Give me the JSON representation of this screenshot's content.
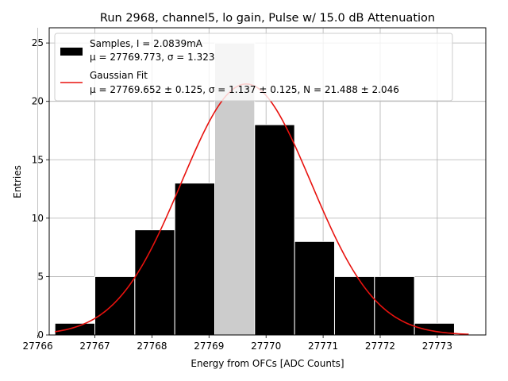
{
  "chart_data": {
    "type": "bar",
    "title": "Run 2968, channel5, lo gain, Pulse w/ 15.0 dB Attenuation",
    "xlabel": "Energy from OFCs [ADC Counts]",
    "ylabel": "Entries",
    "xlim": [
      27766.2,
      27773.85
    ],
    "ylim": [
      0,
      26.3
    ],
    "grid": true,
    "legend_position": "upper-left",
    "xticks": [
      27766,
      27767,
      27768,
      27769,
      27770,
      27771,
      27772,
      27773
    ],
    "yticks": [
      0,
      5,
      10,
      15,
      20,
      25
    ],
    "histogram": {
      "bin_edges": [
        27766.3,
        27767.0,
        27767.7,
        27768.4,
        27769.1,
        27769.8,
        27770.5,
        27771.2,
        27771.9,
        27772.6,
        27773.3
      ],
      "counts": [
        1,
        5,
        9,
        13,
        25,
        18,
        8,
        5,
        5,
        1
      ],
      "colors": [
        "#000000",
        "#000000",
        "#000000",
        "#000000",
        "#cccccc",
        "#000000",
        "#000000",
        "#000000",
        "#000000",
        "#000000"
      ]
    },
    "fit": {
      "mu": 27769.652,
      "sigma": 1.137,
      "N": 21.488,
      "x_range": [
        27766.3,
        27773.55
      ],
      "color": "#e8120e"
    },
    "legend": [
      {
        "line1": "Samples, I = 2.0839mA",
        "line2": "μ = 27769.773, σ = 1.323",
        "symbol": "patch",
        "color": "#000000"
      },
      {
        "line1": "Gaussian Fit",
        "line2": "μ = 27769.652 ± 0.125, σ = 1.137 ± 0.125, N = 21.488 ± 2.046",
        "symbol": "line",
        "color": "#e8120e"
      }
    ]
  }
}
